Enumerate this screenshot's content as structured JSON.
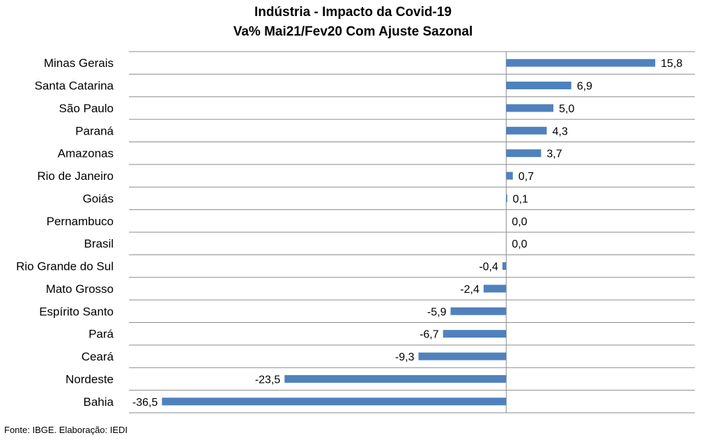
{
  "chart_data": {
    "type": "bar",
    "orientation": "horizontal",
    "title": "Indústria - Impacto da Covid-19",
    "subtitle": "Va% Mai21/Fev20 Com Ajuste Sazonal",
    "categories": [
      "Minas Gerais",
      "Santa Catarina",
      "São Paulo",
      "Paraná",
      "Amazonas",
      "Rio de Janeiro",
      "Goiás",
      "Pernambuco",
      "Brasil",
      "Rio Grande do Sul",
      "Mato Grosso",
      "Espírito Santo",
      "Pará",
      "Ceará",
      "Nordeste",
      "Bahia"
    ],
    "values": [
      15.8,
      6.9,
      5.0,
      4.3,
      3.7,
      0.7,
      0.1,
      0.0,
      0.0,
      -0.4,
      -2.4,
      -5.9,
      -6.7,
      -9.3,
      -23.5,
      -36.5
    ],
    "value_labels": [
      "15,8",
      "6,9",
      "5,0",
      "4,3",
      "3,7",
      "0,7",
      "0,1",
      "0,0",
      "0,0",
      "-0,4",
      "-2,4",
      "-5,9",
      "-6,7",
      "-9,3",
      "-23,5",
      "-36,5"
    ],
    "xlim": [
      -40,
      20
    ],
    "grid": "horizontal",
    "bar_color": "#4F81BD"
  },
  "footer": {
    "source": "Fonte: IBGE. Elaboração: IEDI"
  }
}
